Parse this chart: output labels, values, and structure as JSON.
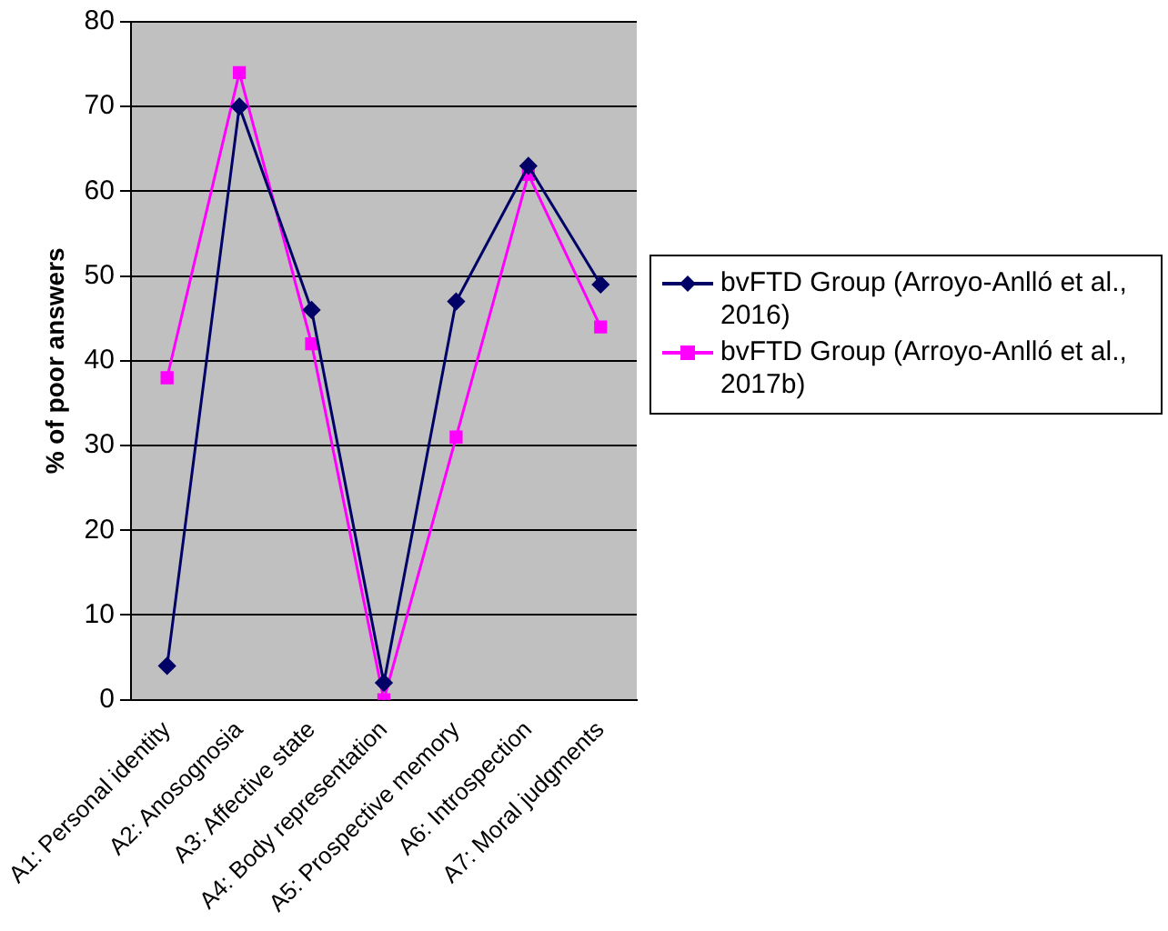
{
  "chart_data": {
    "type": "line",
    "ylabel": "% of poor answers",
    "categories": [
      "A1: Personal identity",
      "A2: Anosognosia",
      "A3: Affective state",
      "A4: Body representation",
      "A5: Prospective memory",
      "A6: Introspection",
      "A7: Moral judgments"
    ],
    "series": [
      {
        "name": "bvFTD Group (Arroyo-Anlló et al., 2016)",
        "color": "#000066",
        "marker": "diamond",
        "values": [
          4,
          70,
          46,
          2,
          47,
          63,
          49
        ]
      },
      {
        "name": "bvFTD Group (Arroyo-Anlló et al., 2017b)",
        "color": "#ff00ff",
        "marker": "square",
        "values": [
          38,
          74,
          42,
          0,
          31,
          62,
          44
        ]
      }
    ],
    "ylim": [
      0,
      80
    ],
    "yticks": [
      0,
      10,
      20,
      30,
      40,
      50,
      60,
      70,
      80
    ],
    "grid": "y",
    "legend": "right",
    "line_style": "solid"
  }
}
